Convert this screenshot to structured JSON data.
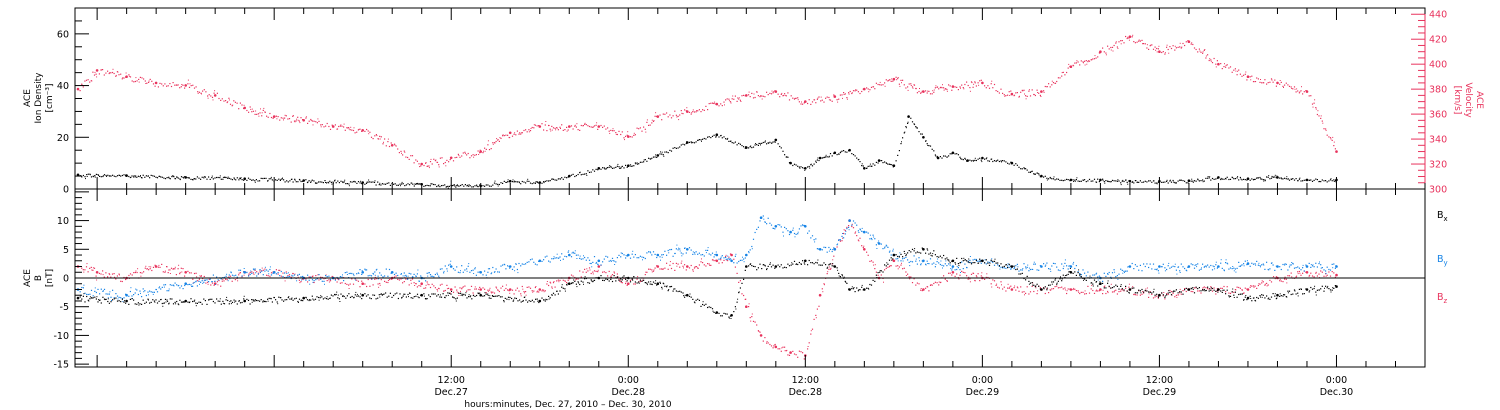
{
  "colors": {
    "black": "#000000",
    "pink": "#e8325c",
    "blue": "#1583e6",
    "axis": "#000000"
  },
  "chart_data": [
    {
      "type": "scatter",
      "panel": "top",
      "ylabel_lines": [
        "ACE",
        "Ion Density",
        "[cm⁻³]"
      ],
      "ylabel_right_lines": [
        "ACE",
        "Velocity",
        "[km/s]"
      ],
      "ylim": [
        0,
        70
      ],
      "ylim_right": [
        300,
        445
      ],
      "yticks": [
        "0",
        "20",
        "40",
        "60"
      ],
      "yticks_right": [
        "300",
        "320",
        "340",
        "360",
        "380",
        "400",
        "420",
        "440"
      ],
      "xlim_hours": [
        -13.5,
        78
      ],
      "series": [
        {
          "name": "ion density",
          "axis": "left",
          "color": "black",
          "x": [
            -13.3,
            -10,
            -6,
            -2,
            2,
            6,
            10,
            14,
            16,
            18,
            20,
            22,
            24,
            26,
            28,
            30,
            32,
            34,
            35,
            36,
            37,
            38,
            39,
            40,
            41,
            42,
            43,
            44,
            45,
            46,
            47,
            48,
            50,
            52,
            54,
            56,
            58,
            60,
            62,
            64,
            66,
            68,
            70,
            72
          ],
          "y": [
            5.5,
            5.2,
            4.5,
            4,
            3.3,
            2.5,
            1.8,
            1.2,
            3,
            2.5,
            5,
            8,
            9,
            13,
            18,
            21,
            16,
            19,
            10,
            8,
            12,
            14,
            15,
            8,
            11,
            9,
            28,
            20,
            12,
            14,
            11,
            12,
            10,
            5,
            3.5,
            3.5,
            3,
            3,
            3.2,
            4.5,
            4,
            4.5,
            3.5,
            3.5
          ]
        },
        {
          "name": "velocity",
          "axis": "right",
          "color": "pink",
          "x": [
            -13.3,
            -12,
            -10,
            -8,
            -6,
            -4,
            -2,
            0,
            2,
            4,
            6,
            8,
            10,
            12,
            14,
            16,
            18,
            20,
            22,
            24,
            26,
            28,
            30,
            32,
            34,
            36,
            38,
            40,
            42,
            44,
            46,
            48,
            50,
            52,
            54,
            56,
            58,
            60,
            62,
            64,
            66,
            68,
            70,
            72
          ],
          "y": [
            380,
            395,
            390,
            385,
            383,
            375,
            365,
            358,
            355,
            350,
            347,
            335,
            320,
            325,
            330,
            345,
            350,
            350,
            350,
            342,
            358,
            362,
            368,
            375,
            378,
            370,
            374,
            380,
            388,
            378,
            382,
            385,
            376,
            378,
            398,
            410,
            422,
            410,
            418,
            400,
            390,
            385,
            378,
            330
          ]
        }
      ]
    },
    {
      "type": "scatter",
      "panel": "bottom",
      "ylabel_lines": [
        "ACE",
        "B",
        "[nT]"
      ],
      "ylim": [
        -15.5,
        15.5
      ],
      "yticks": [
        "-15",
        "-10",
        "-5",
        "0",
        "5",
        "10"
      ],
      "xlim_hours": [
        -13.5,
        78
      ],
      "xticks": [
        {
          "hour": 12,
          "time": "12:00",
          "date": "Dec.27"
        },
        {
          "hour": 24,
          "time": "0:00",
          "date": "Dec.28"
        },
        {
          "hour": 36,
          "time": "12:00",
          "date": "Dec.28"
        },
        {
          "hour": 48,
          "time": "0:00",
          "date": "Dec.29"
        },
        {
          "hour": 60,
          "time": "12:00",
          "date": "Dec.29"
        },
        {
          "hour": 72,
          "time": "0:00",
          "date": "Dec.30"
        }
      ],
      "xlabel": "hours:minutes, Dec. 27, 2010 – Dec. 30, 2010",
      "legend": [
        {
          "base": "B",
          "sub": "x",
          "color": "black"
        },
        {
          "base": "B",
          "sub": "y",
          "color": "blue"
        },
        {
          "base": "B",
          "sub": "z",
          "color": "pink"
        }
      ],
      "series": [
        {
          "name": "Bx",
          "color": "black",
          "x": [
            -13.3,
            -10,
            -6,
            -2,
            2,
            6,
            10,
            14,
            18,
            20,
            22,
            24,
            26,
            28,
            30,
            31,
            32,
            34,
            36,
            38,
            39,
            40,
            42,
            44,
            46,
            48,
            50,
            52,
            54,
            56,
            58,
            60,
            62,
            64,
            66,
            68,
            70,
            72
          ],
          "y": [
            -3.5,
            -4,
            -4,
            -4,
            -3.5,
            -3,
            -3,
            -3,
            -4,
            -1,
            0,
            0,
            -1,
            -3,
            -6,
            -6.5,
            2,
            2,
            3,
            2,
            -2,
            -2,
            4,
            5,
            3,
            3,
            2,
            -2,
            1,
            -1,
            -2,
            -3,
            -2,
            -2,
            -3.5,
            -3,
            -2,
            -1.5
          ]
        },
        {
          "name": "By",
          "color": "blue",
          "x": [
            -13.3,
            -10,
            -6,
            -2,
            0,
            2,
            4,
            6,
            8,
            10,
            12,
            14,
            16,
            18,
            20,
            22,
            24,
            26,
            28,
            30,
            31,
            32,
            33,
            34,
            35,
            36,
            37,
            38,
            39,
            40,
            41,
            42,
            44,
            46,
            48,
            50,
            52,
            54,
            56,
            58,
            60,
            62,
            64,
            66,
            68,
            70,
            72
          ],
          "y": [
            -2,
            -3,
            -1,
            1,
            1,
            0,
            0,
            1,
            1,
            0,
            2,
            1,
            2,
            3,
            4,
            3,
            4,
            4,
            5,
            4,
            3,
            4,
            10.5,
            9,
            8,
            9,
            5,
            5,
            10,
            8,
            6,
            4,
            3,
            2,
            3,
            2,
            2,
            2,
            0,
            2,
            2,
            2,
            2,
            2.5,
            2,
            2,
            2
          ]
        },
        {
          "name": "Bz",
          "color": "pink",
          "x": [
            -13.3,
            -12,
            -10,
            -8,
            -6,
            -4,
            -2,
            0,
            2,
            4,
            6,
            8,
            10,
            12,
            14,
            16,
            18,
            20,
            22,
            24,
            26,
            28,
            30,
            31,
            32,
            33,
            34,
            35,
            36,
            37,
            38,
            39,
            40,
            41,
            42,
            44,
            46,
            48,
            50,
            52,
            54,
            56,
            58,
            60,
            62,
            64,
            66,
            68,
            70,
            72
          ],
          "y": [
            2,
            1,
            0,
            2,
            1,
            -1,
            1,
            1,
            0,
            0,
            -1,
            0,
            -1,
            -2,
            -2,
            -2,
            -2,
            0,
            2,
            -1,
            2,
            2,
            3,
            4,
            -5,
            -10,
            -12,
            -13,
            -13.5,
            -3,
            5,
            10,
            5,
            0,
            3,
            -2,
            1,
            0,
            -2,
            -2,
            -2,
            -2,
            -2,
            -3,
            -2,
            -2,
            -2,
            0,
            1,
            0.5
          ]
        }
      ]
    }
  ]
}
